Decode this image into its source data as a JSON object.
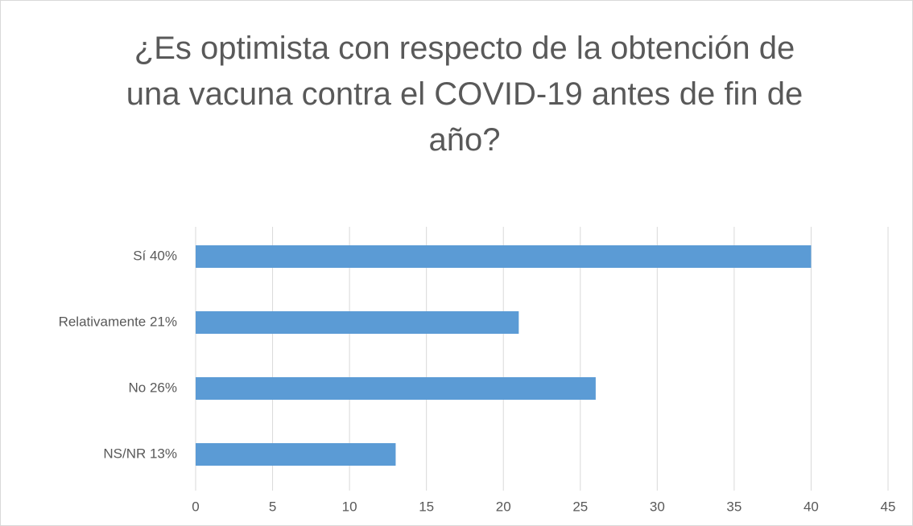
{
  "chart_data": {
    "type": "bar",
    "orientation": "horizontal",
    "title": "¿Es optimista con respecto de la obtención de una vacuna contra el COVID-19 antes de fin de año?",
    "categories": [
      "Sí 40%",
      "Relativamente 21%",
      "No 26%",
      "NS/NR 13%"
    ],
    "values": [
      40,
      21,
      26,
      13
    ],
    "color": "#5b9bd5",
    "xlim": [
      0,
      45
    ],
    "xticks": [
      0,
      5,
      10,
      15,
      20,
      25,
      30,
      35,
      40,
      45
    ],
    "grid": true
  }
}
